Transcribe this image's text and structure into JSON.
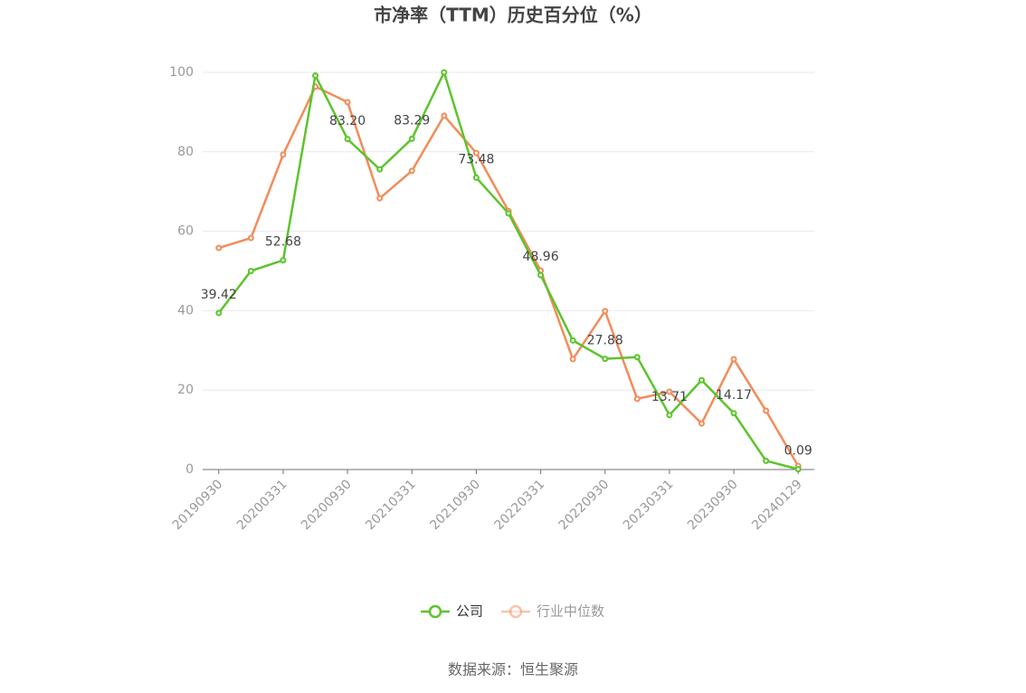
{
  "chart_data": {
    "type": "line",
    "title": "市净率（TTM）历史百分位（%）",
    "categories": [
      "20190930",
      null,
      "20200331",
      null,
      "20200930",
      null,
      "20210331",
      null,
      "20210930",
      null,
      "20220331",
      null,
      "20220930",
      null,
      "20230331",
      null,
      "20230930",
      null,
      "20240129"
    ],
    "series": [
      {
        "name": "公司",
        "color": "#5cc42b",
        "values": [
          39.42,
          50.0,
          52.68,
          99.2,
          83.2,
          75.6,
          83.29,
          100,
          73.48,
          64.5,
          48.96,
          32.5,
          27.88,
          28.3,
          13.71,
          22.5,
          14.17,
          2.2,
          0.09
        ],
        "value_labels": [
          "39.42",
          null,
          "52.68",
          null,
          "83.20",
          null,
          "83.29",
          null,
          "73.48",
          null,
          "48.96",
          null,
          "27.88",
          null,
          "13.71",
          null,
          "14.17",
          null,
          "0.09"
        ]
      },
      {
        "name": "行业中位数",
        "color": "#f28c5a",
        "values": [
          55.8,
          58.3,
          79.3,
          96.4,
          92.5,
          68.3,
          75.2,
          89.1,
          79.7,
          65.1,
          50.1,
          27.8,
          39.9,
          17.8,
          19.6,
          11.6,
          27.8,
          14.8,
          0.9
        ]
      }
    ],
    "ylim": [
      0,
      100
    ],
    "yticks": [
      0,
      20,
      40,
      60,
      80,
      100
    ],
    "grid": true,
    "source": "数据来源：恒生聚源"
  }
}
